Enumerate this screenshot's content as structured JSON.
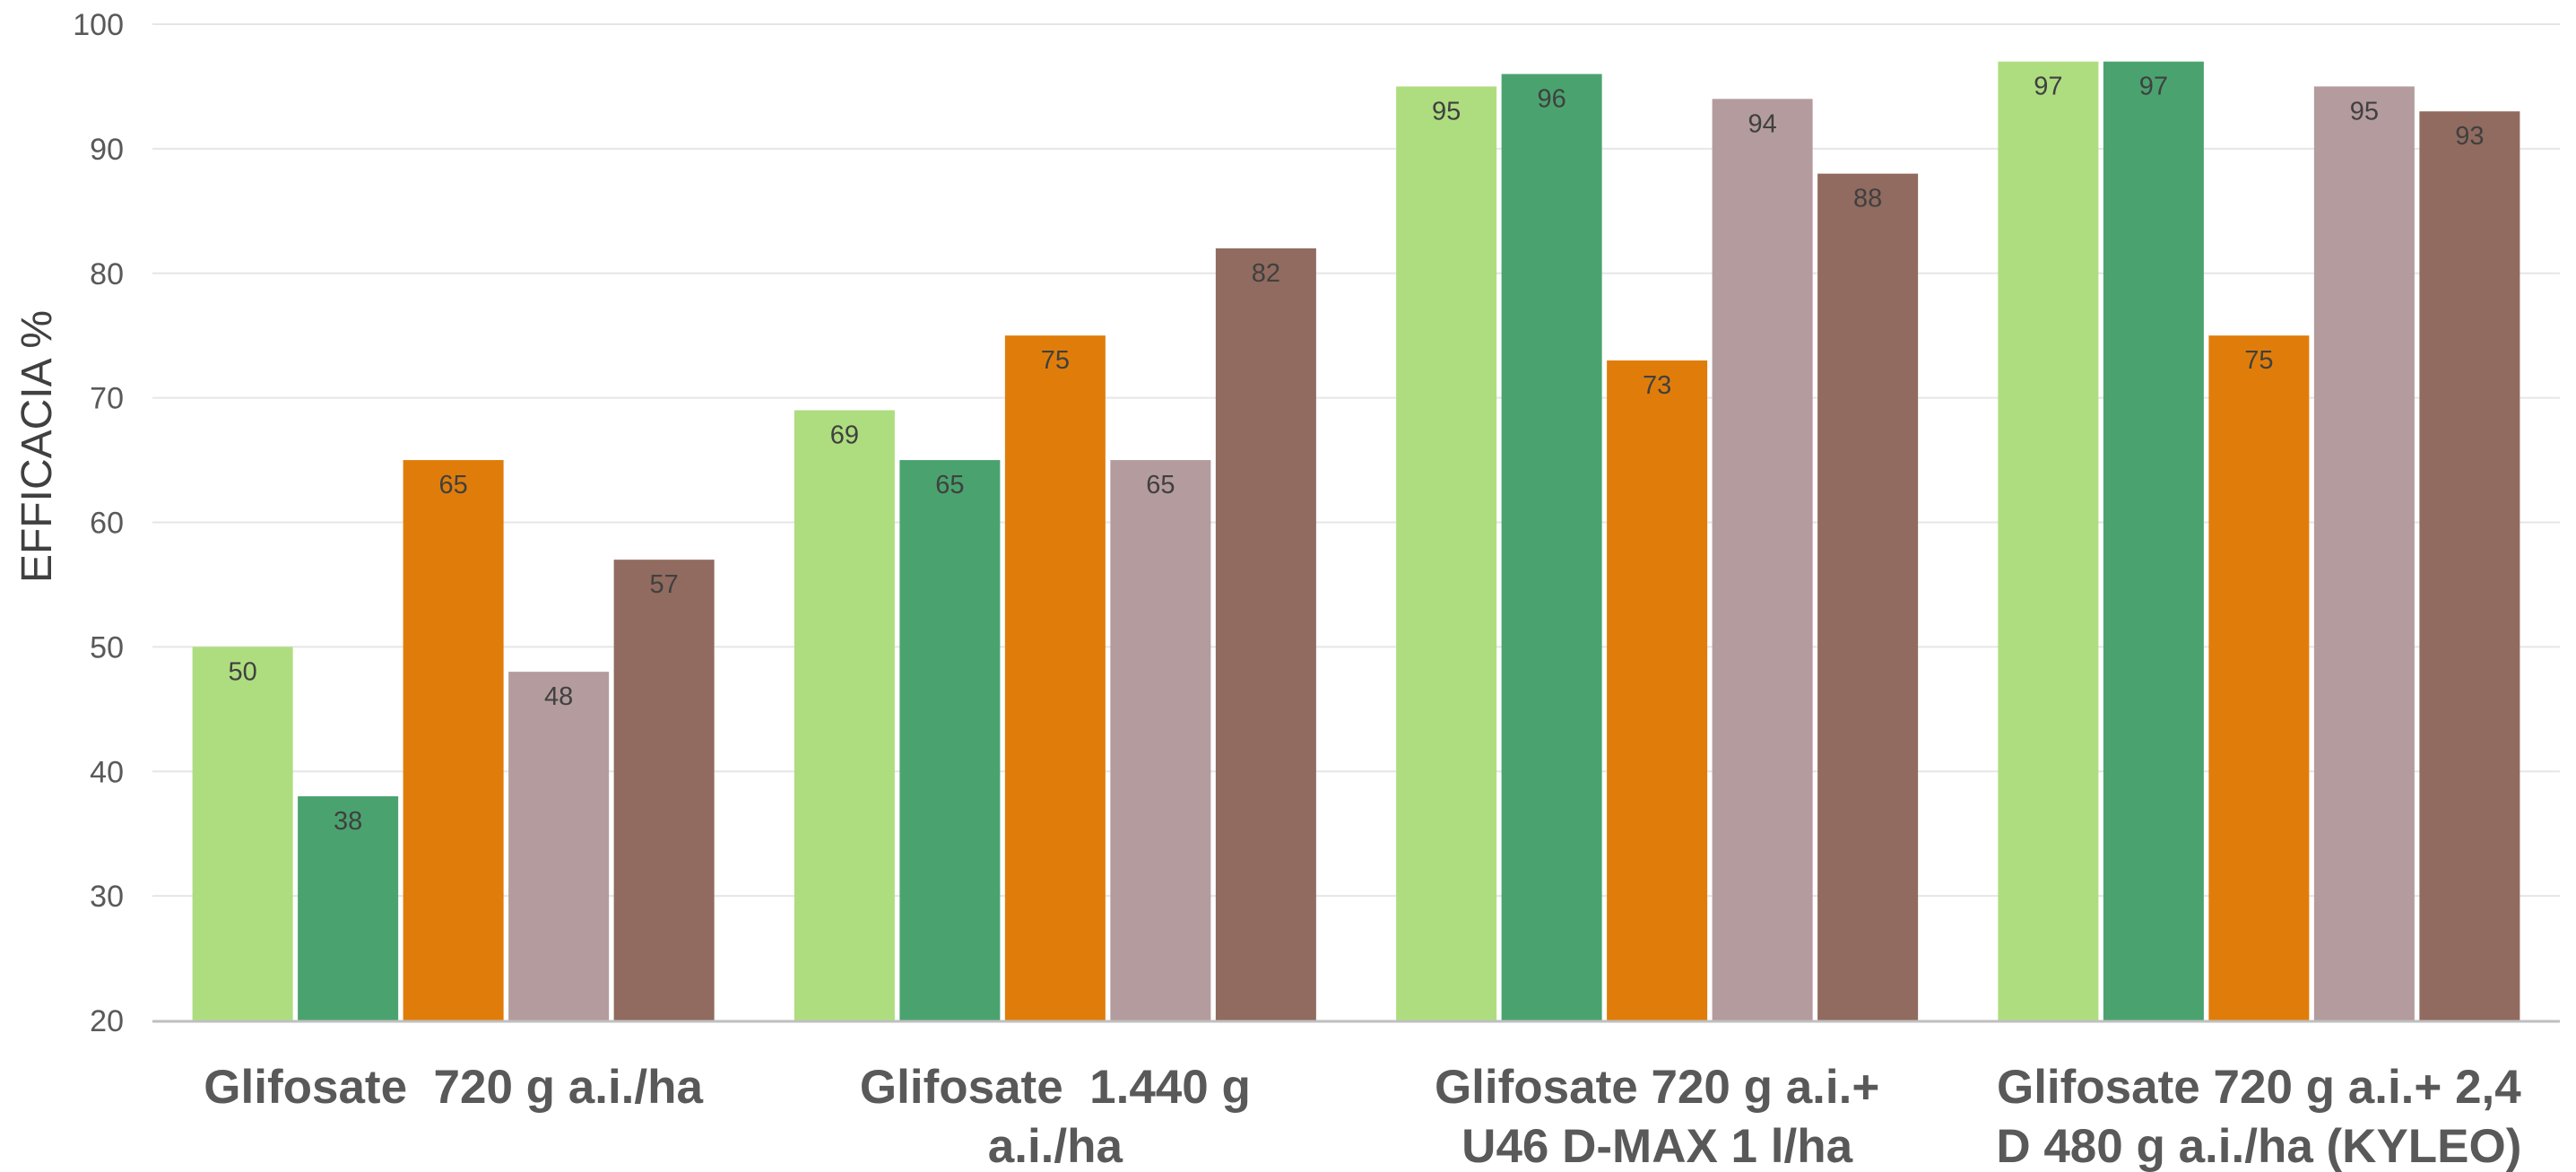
{
  "chart_data": {
    "type": "bar",
    "ylabel": "EFFICACIA %",
    "ylim": [
      20,
      100
    ],
    "yticks": [
      20,
      30,
      40,
      50,
      60,
      70,
      80,
      90,
      100
    ],
    "grid": true,
    "categories": [
      [
        "Glifosate  720 g a.i./ha"
      ],
      [
        "Glifosate  1.440 g",
        "a.i./ha"
      ],
      [
        "Glifosate 720 g a.i.+",
        "U46 D-MAX 1 l/ha"
      ],
      [
        "Glifosate 720 g a.i.+ 2,4",
        "D 480 g a.i./ha (KYLEO)"
      ]
    ],
    "series": [
      {
        "color": "#aedd7f",
        "values": [
          50,
          69,
          95,
          97
        ]
      },
      {
        "color": "#4aa36f",
        "values": [
          38,
          65,
          96,
          97
        ]
      },
      {
        "color": "#e07d0a",
        "values": [
          65,
          75,
          73,
          75
        ]
      },
      {
        "color": "#b49b9d",
        "values": [
          48,
          65,
          94,
          95
        ]
      },
      {
        "color": "#916b5f",
        "values": [
          57,
          82,
          88,
          93
        ]
      }
    ]
  }
}
